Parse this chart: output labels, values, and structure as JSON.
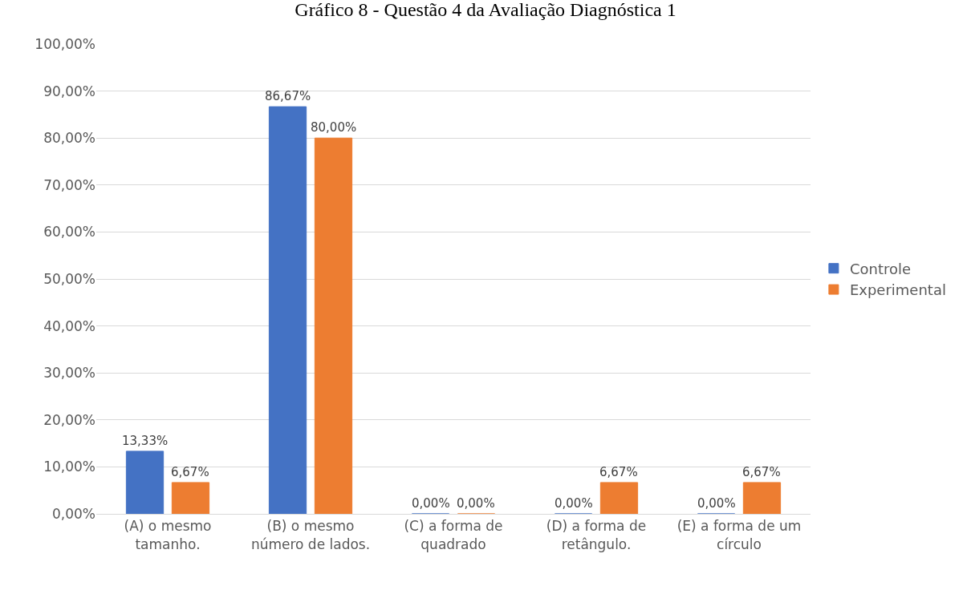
{
  "chart_data": {
    "type": "bar",
    "title": "Gráfico 8 - Questão 4 da Avaliação Diagnóstica 1",
    "categories": [
      "(A) o mesmo tamanho.",
      "(B) o mesmo número de lados.",
      "(C) a forma de quadrado",
      "(D) a forma de retângulo.",
      "(E) a forma de um círculo"
    ],
    "series": [
      {
        "name": "Controle",
        "color": "#4472c4",
        "values": [
          13.33,
          86.67,
          0,
          0,
          0
        ],
        "value_labels": [
          "13,33%",
          "86,67%",
          "0,00%",
          "0,00%",
          "0,00%"
        ]
      },
      {
        "name": "Experimental",
        "color": "#ed7d31",
        "values": [
          6.67,
          80.0,
          0,
          6.67,
          6.67
        ],
        "value_labels": [
          "6,67%",
          "80,00%",
          "0,00%",
          "6,67%",
          "6,67%"
        ]
      }
    ],
    "ylim": [
      0,
      100
    ],
    "yticks": [
      {
        "value": 0,
        "label": "0,00%"
      },
      {
        "value": 10,
        "label": "10,00%"
      },
      {
        "value": 20,
        "label": "20,00%"
      },
      {
        "value": 30,
        "label": "30,00%"
      },
      {
        "value": 40,
        "label": "40,00%"
      },
      {
        "value": 50,
        "label": "50,00%"
      },
      {
        "value": 60,
        "label": "60,00%"
      },
      {
        "value": 70,
        "label": "70,00%"
      },
      {
        "value": 80,
        "label": "80,00%"
      },
      {
        "value": 90,
        "label": "90,00%"
      },
      {
        "value": 100,
        "label": "100,00%"
      }
    ],
    "grid": "y",
    "legend": "right"
  }
}
